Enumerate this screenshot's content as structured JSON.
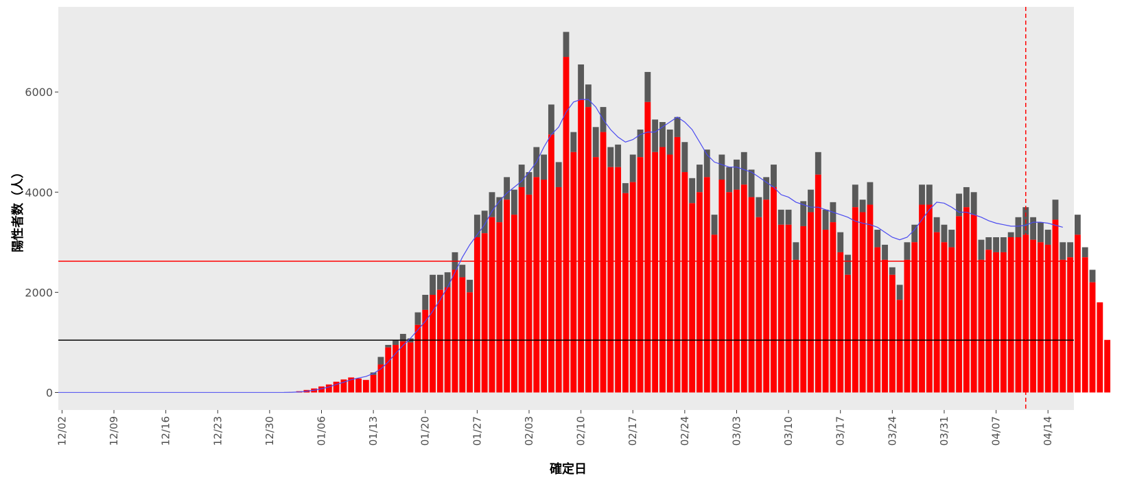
{
  "chart_data": {
    "type": "bar",
    "title": "",
    "xlabel": "確定日",
    "ylabel": "陽性者数（人）",
    "x_tick_labels": [
      "12/02",
      "12/09",
      "12/16",
      "12/23",
      "12/30",
      "01/06",
      "01/13",
      "01/20",
      "01/27",
      "02/03",
      "02/10",
      "02/17",
      "02/24",
      "03/03",
      "03/10",
      "03/17",
      "03/24",
      "03/31",
      "04/07",
      "04/14"
    ],
    "y_tick_labels": [
      "0",
      "2000",
      "4000",
      "6000"
    ],
    "ylim": [
      -350,
      7700
    ],
    "grid": false,
    "x_start": "12/02",
    "x_end": "04/17",
    "stacked": true,
    "colors": {
      "panel": "#ebebeb",
      "series_red": "#ff0000",
      "series_gray": "#595959",
      "line": "#4a4af0",
      "hline_red": "#ff0000",
      "hline_black": "#000000",
      "vline_dashed": "#ff0000"
    },
    "hlines": [
      {
        "name": "red-threshold",
        "y": 2620,
        "color": "#ff0000"
      },
      {
        "name": "black-threshold",
        "y": 1045,
        "color": "#000000"
      }
    ],
    "vline": {
      "x": "04/11",
      "style": "dashed",
      "color": "#ff0000"
    },
    "bars_start_date": "01/01",
    "series": [
      {
        "values_red": [
          5,
          10,
          25,
          50,
          80,
          120,
          160,
          215,
          260,
          300,
          280,
          250,
          350,
          560,
          900,
          950,
          1020,
          1000,
          1350,
          1650,
          1950,
          2050,
          2100,
          2450,
          2300,
          2000,
          3100,
          3180,
          3500,
          3400,
          3850,
          3550,
          4100,
          3950,
          4300,
          4250,
          5150,
          4100,
          6700,
          4800,
          5850,
          5700,
          4700,
          5200,
          4500,
          4500,
          3980,
          4200,
          4700,
          5800,
          4800,
          4900,
          4750,
          5100,
          4400,
          3780,
          4000,
          4300,
          3150,
          4250,
          4000,
          4050,
          4150,
          3900,
          3500,
          3850,
          4100,
          3350,
          3350,
          2650,
          3320,
          3600,
          4350,
          3250,
          3400,
          2800,
          2350,
          3700,
          3600,
          3750,
          2900,
          2650,
          2350,
          1850,
          2650,
          3000,
          3750,
          3750,
          3200,
          3000,
          2900,
          3520,
          3700,
          3550,
          2650,
          2850,
          2800,
          2800,
          3100,
          3100,
          3150,
          3050,
          3000,
          2950,
          3450,
          2650,
          2700,
          3150,
          2700,
          2200,
          1800,
          1050
        ],
        "values_gray": [
          0,
          0,
          0,
          0,
          0,
          0,
          0,
          0,
          0,
          0,
          0,
          0,
          50,
          150,
          50,
          100,
          150,
          80,
          250,
          300,
          400,
          300,
          300,
          350,
          250,
          250,
          450,
          450,
          500,
          500,
          450,
          500,
          450,
          450,
          600,
          500,
          600,
          500,
          500,
          400,
          700,
          450,
          600,
          500,
          400,
          450,
          200,
          550,
          550,
          600,
          650,
          500,
          500,
          400,
          600,
          500,
          550,
          550,
          400,
          500,
          500,
          600,
          650,
          550,
          400,
          450,
          450,
          300,
          300,
          350,
          500,
          450,
          450,
          400,
          400,
          400,
          400,
          450,
          250,
          450,
          350,
          300,
          150,
          300,
          350,
          350,
          400,
          400,
          300,
          350,
          350,
          450,
          400,
          450,
          400,
          250,
          300,
          300,
          100,
          400,
          550,
          450,
          400,
          300,
          400,
          350,
          300,
          400,
          200,
          250,
          0,
          0
        ]
      }
    ],
    "moving_average": [
      2,
      5,
      12,
      25,
      45,
      75,
      110,
      160,
      205,
      255,
      290,
      320,
      380,
      470,
      610,
      780,
      940,
      1080,
      1250,
      1420,
      1620,
      1850,
      2100,
      2400,
      2700,
      2950,
      3150,
      3350,
      3620,
      3820,
      3980,
      4100,
      4220,
      4400,
      4600,
      4900,
      5150,
      5300,
      5600,
      5800,
      5850,
      5850,
      5700,
      5450,
      5250,
      5100,
      5000,
      5050,
      5150,
      5200,
      5200,
      5300,
      5400,
      5500,
      5400,
      5250,
      5000,
      4750,
      4600,
      4550,
      4500,
      4500,
      4450,
      4400,
      4300,
      4200,
      4100,
      3950,
      3900,
      3800,
      3750,
      3700,
      3700,
      3650,
      3600,
      3550,
      3500,
      3420,
      3380,
      3350,
      3300,
      3200,
      3100,
      3050,
      3100,
      3250,
      3450,
      3650,
      3800,
      3780,
      3700,
      3600,
      3600,
      3550,
      3500,
      3430,
      3380,
      3350,
      3320,
      3320,
      3340,
      3400,
      3400,
      3380,
      3340,
      3300
    ]
  }
}
